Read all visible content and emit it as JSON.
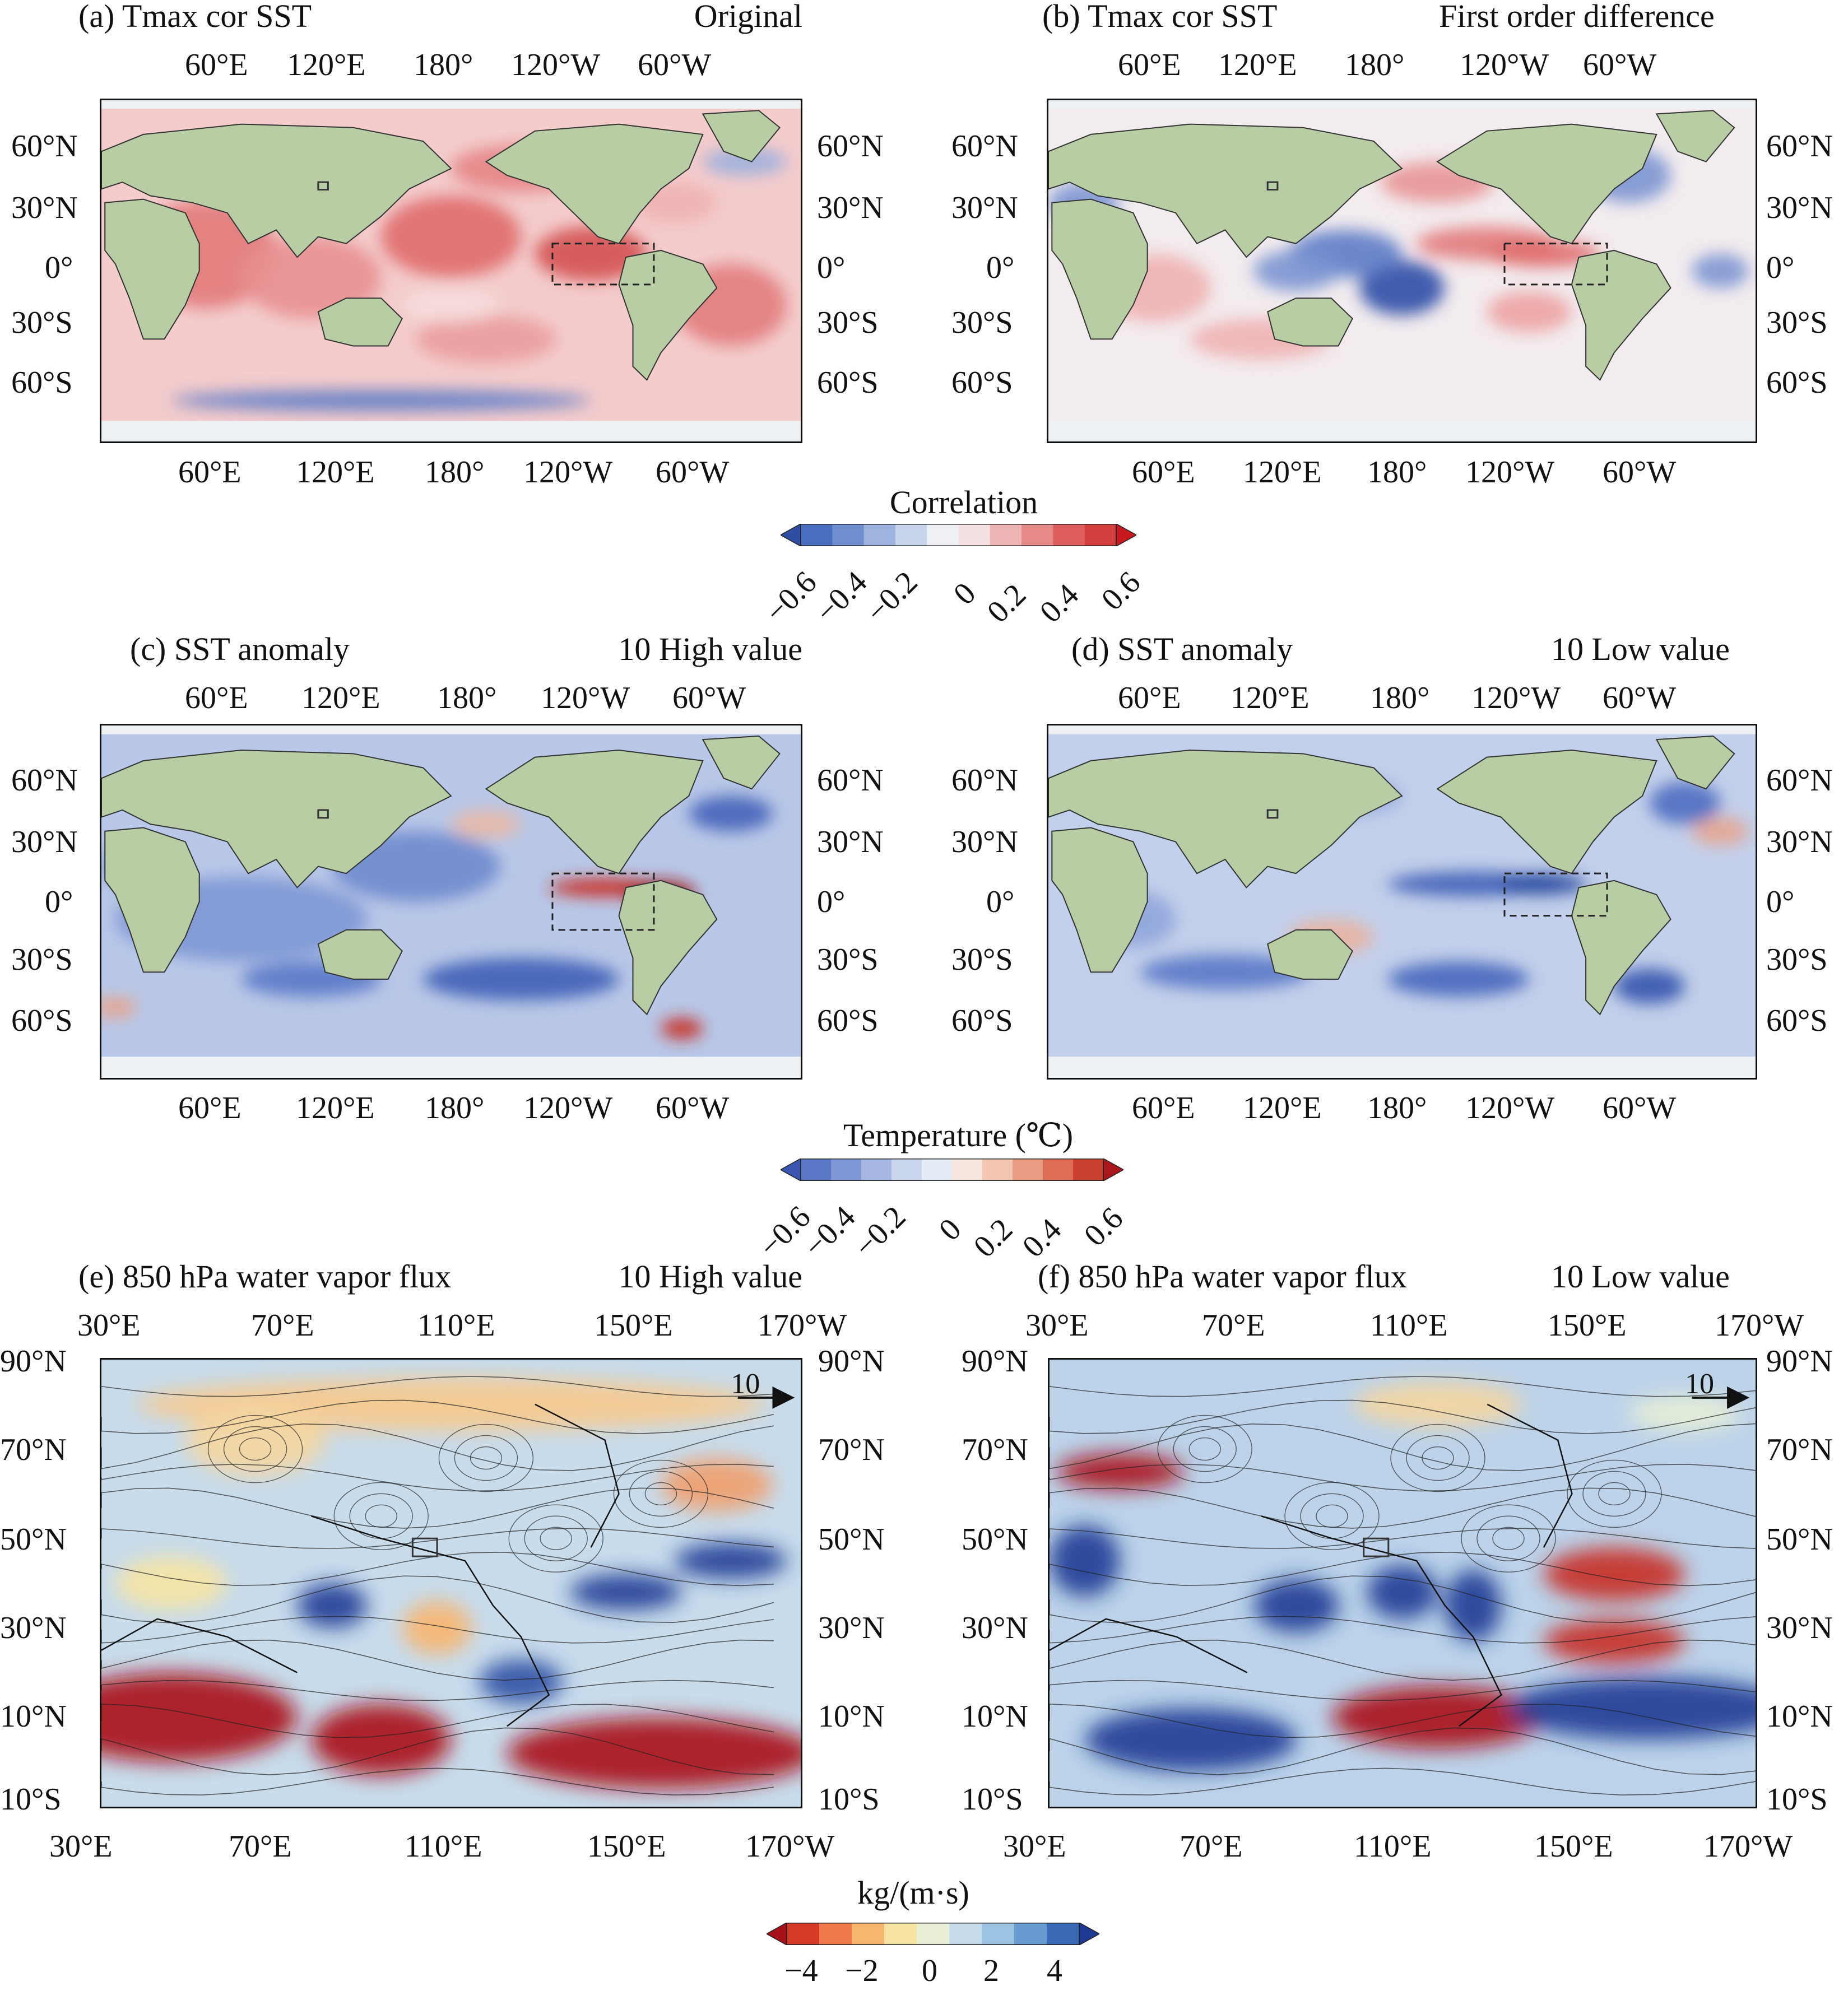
{
  "panels": [
    {
      "id": "a",
      "title": "(a) Tmax cor SST",
      "subtitle": "Original",
      "kind": "global-cor",
      "top_ticks": [
        "60°E",
        "120°E",
        "180°",
        "120°W",
        "60°W"
      ],
      "bottom_ticks": [
        "60°E",
        "120°E",
        "180°",
        "120°W",
        "60°W"
      ],
      "left_ticks": [
        "60°N",
        "30°N",
        "0°",
        "30°S",
        "60°S"
      ],
      "right_ticks": [
        "60°N",
        "30°N",
        "0°",
        "30°S",
        "60°S"
      ]
    },
    {
      "id": "b",
      "title": "(b) Tmax cor SST",
      "subtitle": "First order difference",
      "kind": "global-diff",
      "top_ticks": [
        "60°E",
        "120°E",
        "180°",
        "120°W",
        "60°W"
      ],
      "bottom_ticks": [
        "60°E",
        "120°E",
        "180°",
        "120°W",
        "60°W"
      ],
      "left_ticks": [
        "60°N",
        "30°N",
        "0°",
        "30°S",
        "60°S"
      ],
      "right_ticks": [
        "60°N",
        "30°N",
        "0°",
        "30°S",
        "60°S"
      ]
    },
    {
      "id": "c",
      "title": "(c) SST anomaly",
      "subtitle": "10 High value",
      "kind": "global-high",
      "top_ticks": [
        "60°E",
        "120°E",
        "180°",
        "120°W",
        "60°W"
      ],
      "bottom_ticks": [
        "60°E",
        "120°E",
        "180°",
        "120°W",
        "60°W"
      ],
      "left_ticks": [
        "60°N",
        "30°N",
        "0°",
        "30°S",
        "60°S"
      ],
      "right_ticks": [
        "60°N",
        "30°N",
        "0°",
        "30°S",
        "60°S"
      ]
    },
    {
      "id": "d",
      "title": "(d) SST anomaly",
      "subtitle": "10 Low value",
      "kind": "global-low",
      "top_ticks": [
        "60°E",
        "120°E",
        "180°",
        "120°W",
        "60°W"
      ],
      "bottom_ticks": [
        "60°E",
        "120°E",
        "180°",
        "120°W",
        "60°W"
      ],
      "left_ticks": [
        "60°N",
        "30°N",
        "0°",
        "30°S",
        "60°S"
      ],
      "right_ticks": [
        "60°N",
        "30°N",
        "0°",
        "30°S",
        "60°S"
      ]
    },
    {
      "id": "e",
      "title": "(e) 850 hPa water vapor flux",
      "subtitle": "10 High value",
      "kind": "flux-high",
      "vector_label": "10",
      "top_ticks": [
        "30°E",
        "70°E",
        "110°E",
        "150°E",
        "170°W"
      ],
      "bottom_ticks": [
        "30°E",
        "70°E",
        "110°E",
        "150°E",
        "170°W"
      ],
      "left_ticks": [
        "90°N",
        "70°N",
        "50°N",
        "30°N",
        "10°N",
        "10°S"
      ],
      "right_ticks": [
        "90°N",
        "70°N",
        "50°N",
        "30°N",
        "10°N",
        "10°S"
      ]
    },
    {
      "id": "f",
      "title": "(f) 850 hPa water vapor flux",
      "subtitle": "10 Low value",
      "kind": "flux-low",
      "vector_label": "10",
      "top_ticks": [
        "30°E",
        "70°E",
        "110°E",
        "150°E",
        "170°W"
      ],
      "bottom_ticks": [
        "30°E",
        "70°E",
        "110°E",
        "150°E",
        "170°W"
      ],
      "left_ticks": [
        "90°N",
        "70°N",
        "50°N",
        "30°N",
        "10°N",
        "10°S"
      ],
      "right_ticks": [
        "90°N",
        "70°N",
        "50°N",
        "30°N",
        "10°N",
        "10°S"
      ]
    }
  ],
  "colorbars": [
    {
      "id": "cor",
      "title": "Correlation",
      "ticks": [
        "−0.6",
        "−0.4",
        "−0.2",
        "0",
        "0.2",
        "0.4",
        "0.6"
      ],
      "colors": [
        "#2e4ea3",
        "#4a6fc0",
        "#6f8fd0",
        "#9fb3df",
        "#c8d3ec",
        "#eef0f6",
        "#f5e1e1",
        "#efb5b5",
        "#e88a8a",
        "#df5f5f",
        "#d43d3d",
        "#c8191e"
      ]
    },
    {
      "id": "temp",
      "title": "Temperature (℃)",
      "ticks": [
        "−0.6",
        "−0.4",
        "−0.2",
        "0",
        "0.2",
        "0.4",
        "0.6"
      ],
      "colors": [
        "#3a55b0",
        "#5a78c6",
        "#7f98d5",
        "#a6b8e2",
        "#c9d4ed",
        "#e6ecf5",
        "#f6e6df",
        "#f2c6b3",
        "#e99c83",
        "#dd6d55",
        "#c9402f",
        "#a9191c"
      ]
    },
    {
      "id": "flux",
      "title": "kg/(m·s)",
      "ticks": [
        "−4",
        "−2",
        "0",
        "2",
        "4"
      ],
      "colors": [
        "#a8101a",
        "#d63b2a",
        "#ee7a4b",
        "#f8b56e",
        "#f7e4a2",
        "#e9efd5",
        "#c7ddec",
        "#9dc3e2",
        "#6a9bd0",
        "#3c69b5",
        "#1c3a94"
      ]
    }
  ],
  "colors": {
    "land": "#b8cda3",
    "ice": "#eef1f4",
    "frame": "#111111",
    "box": "#333333"
  }
}
